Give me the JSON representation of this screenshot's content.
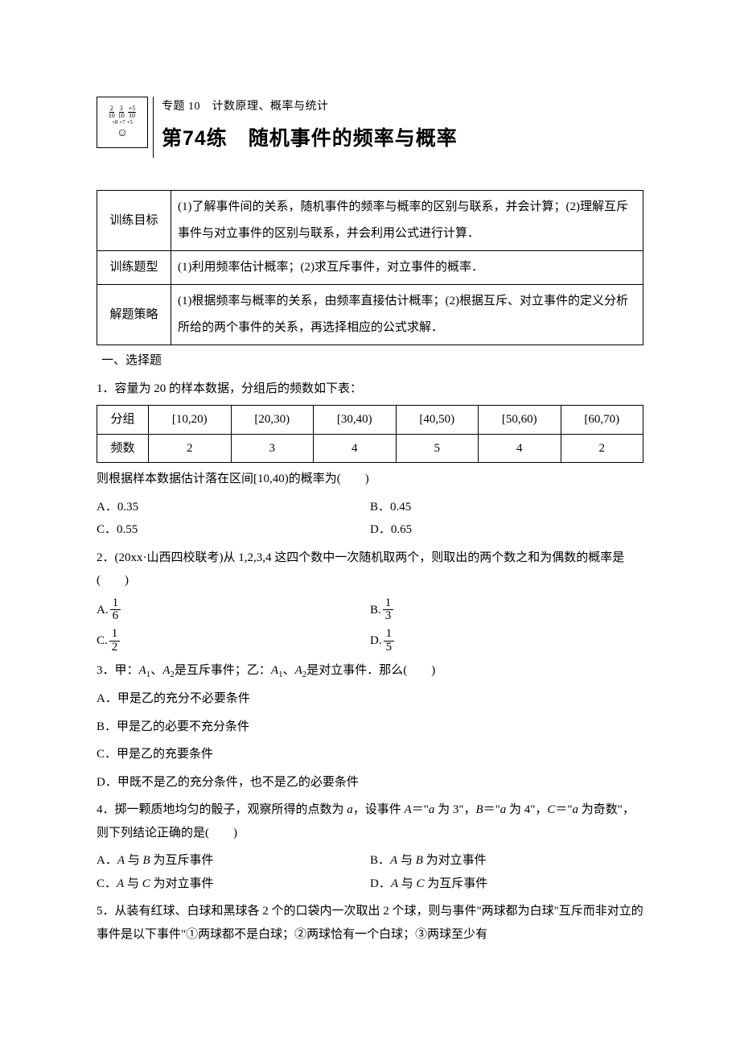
{
  "header": {
    "topic_line": "专题 10　计数原理、概率与统计",
    "lesson_title": "第74练　随机事件的频率与概率",
    "logo_fracs": [
      "2/10",
      "3/10",
      "+5/10"
    ],
    "logo_plus_marks": [
      "+8",
      "+7",
      "+5"
    ]
  },
  "goals_table": {
    "rows": [
      {
        "label": "训练目标",
        "body": "(1)了解事件间的关系，随机事件的频率与概率的区别与联系，并会计算；(2)理解互斥事件与对立事件的区别与联系，并会利用公式进行计算．"
      },
      {
        "label": "训练题型",
        "body": "(1)利用频率估计概率；(2)求互斥事件，对立事件的概率．"
      },
      {
        "label": "解题策略",
        "body": "(1)根据频率与概率的关系，由频率直接估计概率；(2)根据互斥、对立事件的定义分析所给的两个事件的关系，再选择相应的公式求解．"
      }
    ]
  },
  "section_1_heading": "一、选择题",
  "q1": {
    "stem": "1．容量为 20 的样本数据，分组后的频数如下表：",
    "row1_label": "分组",
    "row2_label": "频数",
    "groups": [
      "[10,20)",
      "[20,30)",
      "[30,40)",
      "[40,50)",
      "[50,60)",
      "[60,70)"
    ],
    "freqs": [
      "2",
      "3",
      "4",
      "5",
      "4",
      "2"
    ],
    "after": "则根据样本数据估计落在区间[10,40)的概率为(　　)",
    "optA": "A．0.35",
    "optB": "B．0.45",
    "optC": "C．0.55",
    "optD": "D．0.65"
  },
  "q2": {
    "stem": "2．(20xx·山西四校联考)从 1,2,3,4 这四个数中一次随机取两个，则取出的两个数之和为偶数的概率是(　　)",
    "labelA": "A.",
    "numA": "1",
    "denA": "6",
    "labelB": "B.",
    "numB": "1",
    "denB": "3",
    "labelC": "C.",
    "numC": "1",
    "denC": "2",
    "labelD": "D.",
    "numD": "1",
    "denD": "5"
  },
  "q3": {
    "stem_pre": "3．甲：",
    "stem_a1": "A",
    "stem_sub1": "1",
    "stem_mid1": "、",
    "stem_a2": "A",
    "stem_sub2": "2",
    "stem_mid2": "是互斥事件；乙：",
    "stem_a3": "A",
    "stem_sub3": "1",
    "stem_mid3": "、",
    "stem_a4": "A",
    "stem_sub4": "2",
    "stem_tail": "是对立事件．那么(　　)",
    "optA": "A．甲是乙的充分不必要条件",
    "optB": "B．甲是乙的必要不充分条件",
    "optC": "C．甲是乙的充要条件",
    "optD": "D．甲既不是乙的充分条件，也不是乙的必要条件"
  },
  "q4": {
    "stem_pre": "4．掷一颗质地均匀的骰子，观察所得的点数为 ",
    "var_a": "a",
    "stem_mid1": "，设事件 ",
    "var_A": "A",
    "stem_mid2": "＝\"",
    "stem_mid2b": " 为 3\"，",
    "var_B": "B",
    "stem_mid3": "＝\"",
    "stem_mid3b": " 为 4\"，",
    "var_C": "C",
    "stem_mid4": "＝\"",
    "stem_mid4b": " 为奇数\"，则下列结论正确的是(　　)",
    "optA_pre": "A．",
    "optA_body": " 与 ",
    "optA_tail": " 为互斥事件",
    "optB_pre": "B．",
    "optB_body": " 与 ",
    "optB_tail": " 为对立事件",
    "optC_pre": "C．",
    "optC_body": " 与 ",
    "optC_tail": " 为对立事件",
    "optD_pre": "D．",
    "optD_body": " 与 ",
    "optD_tail": " 为互斥事件"
  },
  "q5": {
    "stem": "5．从装有红球、白球和黑球各 2 个的口袋内一次取出 2 个球，则与事件\"两球都为白球\"互斥而非对立的事件是以下事件\"①两球都不是白球；②两球恰有一个白球；③两球至少有"
  }
}
